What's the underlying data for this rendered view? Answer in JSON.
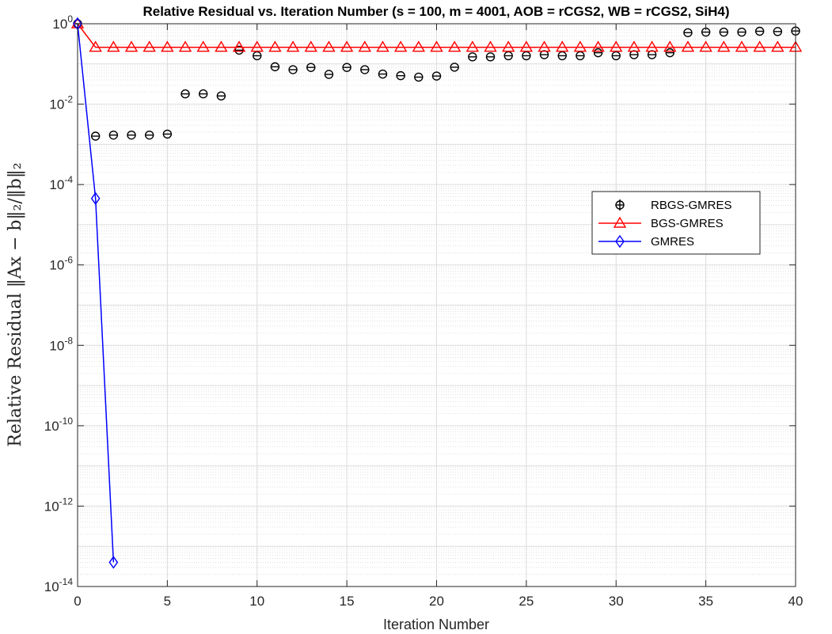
{
  "chart_data": {
    "type": "line",
    "title": "Relative Residual vs. Iteration Number (s = 100, m = 4001, AOB = rCGS2, WB = rCGS2, SiH4)",
    "xlabel": "Iteration Number",
    "ylabel": "Relative Residual ‖Ax − b‖₂/‖b‖₂",
    "xlim": [
      0,
      40
    ],
    "ylim": [
      1e-14,
      1
    ],
    "yscale": "log",
    "grid": true,
    "minor_grid": true,
    "legend_position": "right",
    "x_ticks": [
      "0",
      "5",
      "10",
      "15",
      "20",
      "25",
      "30",
      "35",
      "40"
    ],
    "y_ticks": [
      {
        "base": "10",
        "exp": "-14"
      },
      {
        "base": "10",
        "exp": "-12"
      },
      {
        "base": "10",
        "exp": "-10"
      },
      {
        "base": "10",
        "exp": "-8"
      },
      {
        "base": "10",
        "exp": "-6"
      },
      {
        "base": "10",
        "exp": "-4"
      },
      {
        "base": "10",
        "exp": "-2"
      },
      {
        "base": "10",
        "exp": "0"
      }
    ],
    "series": [
      {
        "name": "RBGS-GMRES",
        "color": "#000000",
        "marker": "circle-errorbar",
        "line": false,
        "x": [
          0,
          1,
          2,
          3,
          4,
          5,
          6,
          7,
          8,
          9,
          10,
          11,
          12,
          13,
          14,
          15,
          16,
          17,
          18,
          19,
          20,
          21,
          22,
          23,
          24,
          25,
          26,
          27,
          28,
          29,
          30,
          31,
          32,
          33,
          34,
          35,
          36,
          37,
          38,
          39,
          40
        ],
        "y": [
          1.0,
          0.0016,
          0.0017,
          0.0017,
          0.0017,
          0.0018,
          0.018,
          0.018,
          0.016,
          0.22,
          0.16,
          0.085,
          0.072,
          0.082,
          0.055,
          0.082,
          0.072,
          0.056,
          0.051,
          0.047,
          0.05,
          0.083,
          0.15,
          0.15,
          0.16,
          0.16,
          0.17,
          0.16,
          0.16,
          0.19,
          0.16,
          0.17,
          0.17,
          0.19,
          0.6,
          0.62,
          0.62,
          0.62,
          0.65,
          0.64,
          0.66
        ]
      },
      {
        "name": "BGS-GMRES",
        "color": "#ff0000",
        "marker": "triangle",
        "line": true,
        "x": [
          0,
          1,
          2,
          3,
          4,
          5,
          6,
          7,
          8,
          9,
          10,
          11,
          12,
          13,
          14,
          15,
          16,
          17,
          18,
          19,
          20,
          21,
          22,
          23,
          24,
          25,
          26,
          27,
          28,
          29,
          30,
          31,
          32,
          33,
          34,
          35,
          36,
          37,
          38,
          39,
          40
        ],
        "y": [
          1.0,
          0.26,
          0.26,
          0.26,
          0.26,
          0.26,
          0.26,
          0.26,
          0.26,
          0.26,
          0.26,
          0.26,
          0.26,
          0.26,
          0.26,
          0.26,
          0.26,
          0.26,
          0.26,
          0.26,
          0.26,
          0.26,
          0.26,
          0.26,
          0.26,
          0.26,
          0.26,
          0.26,
          0.26,
          0.26,
          0.26,
          0.26,
          0.26,
          0.26,
          0.26,
          0.26,
          0.26,
          0.26,
          0.26,
          0.26,
          0.26
        ]
      },
      {
        "name": "GMRES",
        "color": "#0000ff",
        "marker": "diamond",
        "line": true,
        "x": [
          0,
          1,
          2
        ],
        "y": [
          1.0,
          4.5e-05,
          4e-14
        ]
      }
    ]
  }
}
